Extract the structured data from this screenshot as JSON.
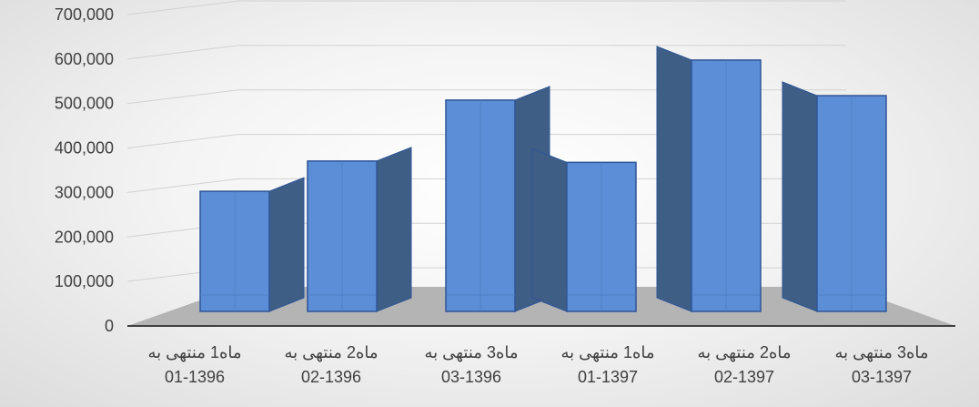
{
  "chart_data": {
    "type": "bar",
    "title": "",
    "xlabel": "",
    "ylabel": "",
    "ylim": [
      0,
      700000
    ],
    "grid": true,
    "legend": "none",
    "yticks": [
      "0",
      "100,000",
      "200,000",
      "300,000",
      "400,000",
      "500,000",
      "600,000",
      "700,000"
    ],
    "categories": [
      [
        "ماه1 منتهی به",
        "01-1396"
      ],
      [
        "ماه2 منتهی به",
        "02-1396"
      ],
      [
        "ماه3 منتهی به",
        "03-1396"
      ],
      [
        "ماه1 منتهی به",
        "01-1397"
      ],
      [
        "ماه2 منتهی به",
        "02-1397"
      ],
      [
        "ماه3 منتهی به",
        "03-1397"
      ]
    ],
    "series": [
      {
        "values": [
          270000,
          338000,
          475000,
          335000,
          565000,
          485000
        ]
      }
    ],
    "colors": {
      "bar_front": "#5B8ED6",
      "bar_top": "#6FA0E4",
      "bar_side": "#3E5E86",
      "bar_edge": "#2F5597",
      "floor": "#b4b4b4",
      "gridline": "#d2d2d2",
      "axis": "#404040"
    }
  }
}
